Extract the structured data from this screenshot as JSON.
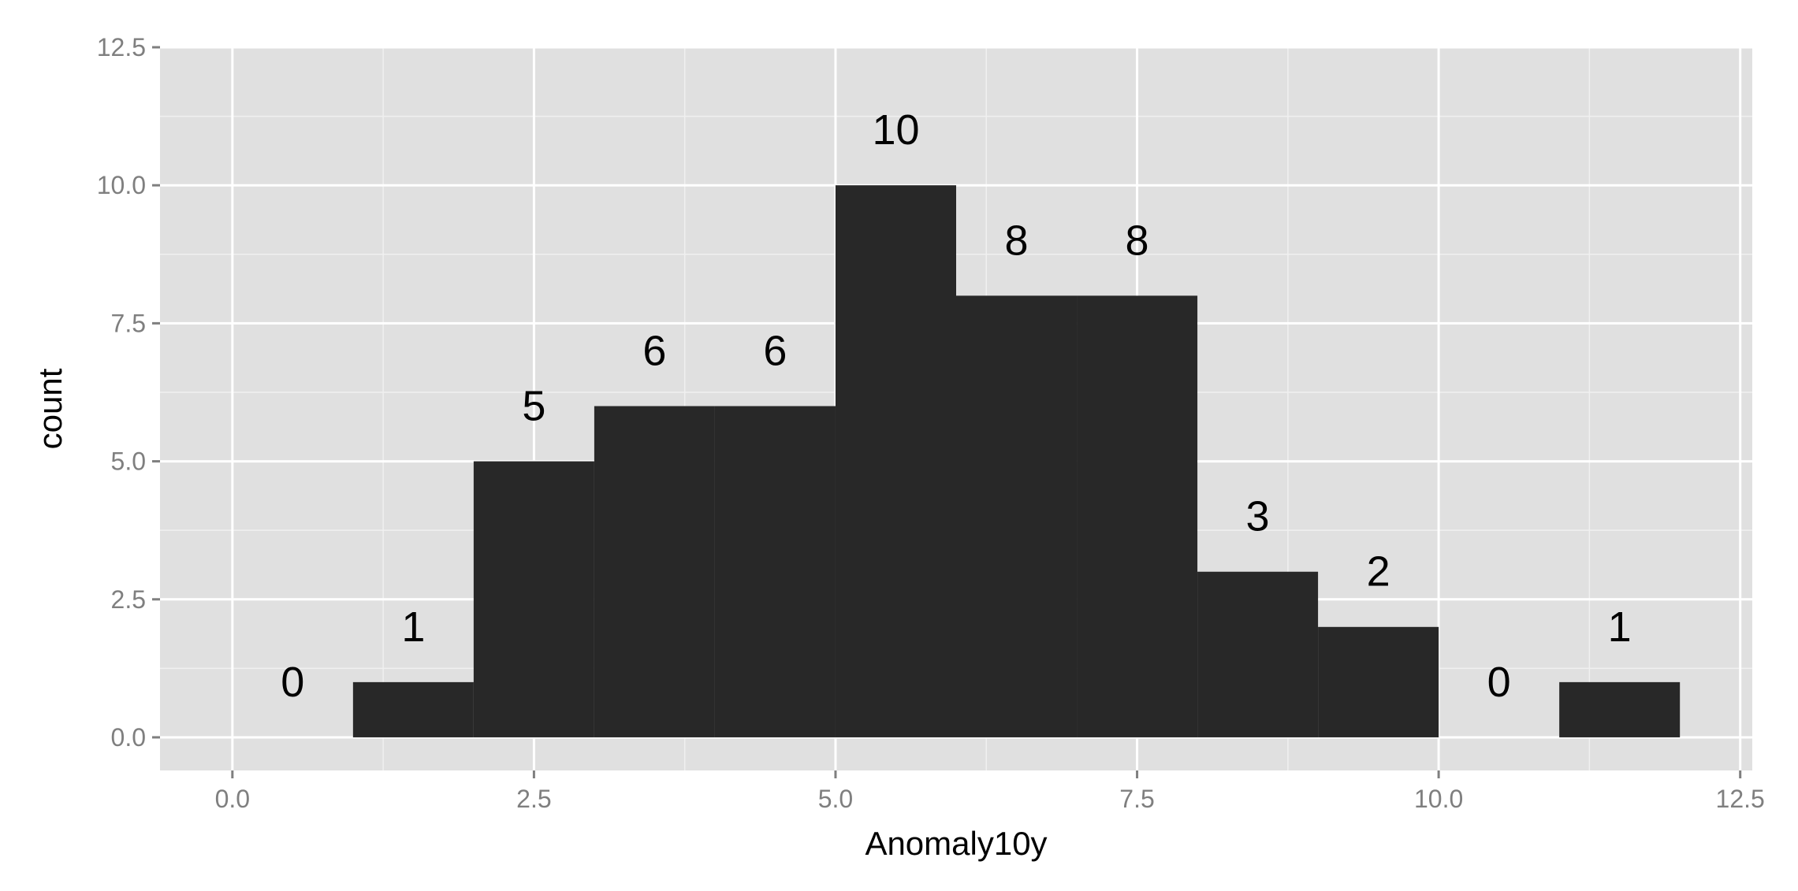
{
  "chart_data": {
    "type": "bar",
    "subtype": "histogram",
    "xlabel": "Anomaly10y",
    "ylabel": "count",
    "bin_width": 1,
    "bins": [
      {
        "start": 0,
        "end": 1,
        "count": 0
      },
      {
        "start": 1,
        "end": 2,
        "count": 1
      },
      {
        "start": 2,
        "end": 3,
        "count": 5
      },
      {
        "start": 3,
        "end": 4,
        "count": 6
      },
      {
        "start": 4,
        "end": 5,
        "count": 6
      },
      {
        "start": 5,
        "end": 6,
        "count": 10
      },
      {
        "start": 6,
        "end": 7,
        "count": 8
      },
      {
        "start": 7,
        "end": 8,
        "count": 8
      },
      {
        "start": 8,
        "end": 9,
        "count": 3
      },
      {
        "start": 9,
        "end": 10,
        "count": 2
      },
      {
        "start": 10,
        "end": 11,
        "count": 0
      },
      {
        "start": 11,
        "end": 12,
        "count": 1
      }
    ],
    "data_labels": [
      "0",
      "1",
      "5",
      "6",
      "6",
      "10",
      "8",
      "8",
      "3",
      "2",
      "0",
      "1"
    ],
    "xlim": [
      -0.6,
      12.6
    ],
    "ylim": [
      -0.6,
      12.5
    ],
    "x_ticks": [
      0,
      2.5,
      5,
      7.5,
      10,
      12.5
    ],
    "x_tick_labels": [
      "0.0",
      "2.5",
      "5.0",
      "7.5",
      "10.0",
      "12.5"
    ],
    "y_ticks": [
      0,
      2.5,
      5,
      7.5,
      10,
      12.5
    ],
    "y_tick_labels": [
      "0.0",
      "2.5",
      "5.0",
      "7.5",
      "10.0",
      "12.5"
    ],
    "grid": true,
    "legend": "none",
    "colors": {
      "bar_fill": "#282828",
      "panel_background": "#e0e0e0",
      "grid_major": "#ffffff",
      "grid_minor": "#f0f0f0"
    }
  }
}
